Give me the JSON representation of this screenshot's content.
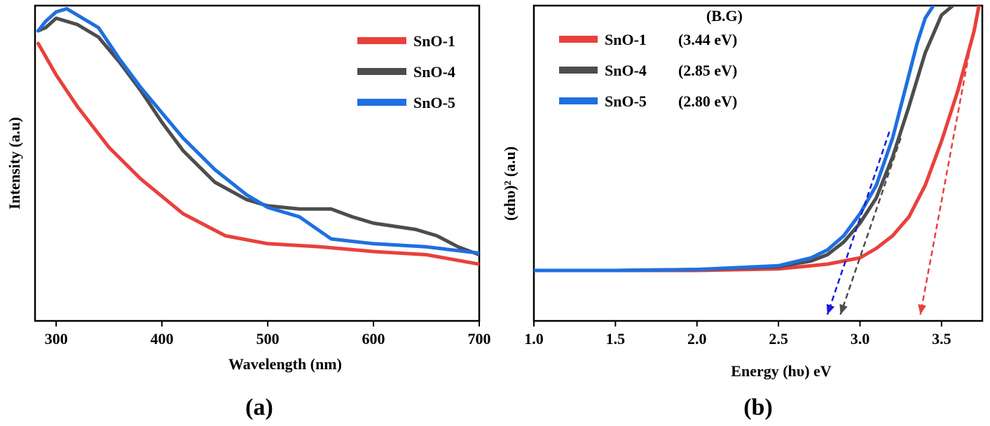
{
  "chart_data": [
    {
      "type": "line",
      "panel_label": "(a)",
      "xlabel": "Wavelength (nm)",
      "ylabel": "Intensity (a.u)",
      "xlim": [
        280,
        700
      ],
      "ylim": [
        0,
        1
      ],
      "x_ticks": [
        300,
        400,
        500,
        600,
        700
      ],
      "y_ticks_shown": false,
      "legend_position": "top-right",
      "series": [
        {
          "name": "SnO-1",
          "color": "#e8413c",
          "x": [
            283,
            300,
            320,
            350,
            380,
            420,
            460,
            500,
            550,
            600,
            650,
            700
          ],
          "y": [
            0.88,
            0.78,
            0.68,
            0.55,
            0.45,
            0.34,
            0.27,
            0.245,
            0.235,
            0.22,
            0.21,
            0.18
          ]
        },
        {
          "name": "SnO-4",
          "color": "#4d4d4d",
          "x": [
            283,
            290,
            300,
            320,
            340,
            360,
            380,
            400,
            420,
            450,
            480,
            500,
            530,
            560,
            580,
            600,
            620,
            640,
            660,
            680,
            700
          ],
          "y": [
            0.92,
            0.93,
            0.96,
            0.94,
            0.9,
            0.82,
            0.73,
            0.63,
            0.54,
            0.44,
            0.385,
            0.365,
            0.355,
            0.355,
            0.33,
            0.31,
            0.3,
            0.29,
            0.27,
            0.235,
            0.21
          ]
        },
        {
          "name": "SnO-5",
          "color": "#1f6fe0",
          "x": [
            283,
            290,
            300,
            310,
            320,
            340,
            360,
            380,
            400,
            420,
            450,
            480,
            500,
            530,
            560,
            600,
            650,
            700
          ],
          "y": [
            0.92,
            0.95,
            0.98,
            0.99,
            0.97,
            0.93,
            0.83,
            0.74,
            0.66,
            0.58,
            0.48,
            0.4,
            0.36,
            0.33,
            0.26,
            0.245,
            0.235,
            0.215
          ]
        }
      ]
    },
    {
      "type": "line",
      "panel_label": "(b)",
      "xlabel": "Energy (hυ) eV",
      "ylabel": "(αhυ)² (a.u)",
      "xlim": [
        1.0,
        3.75
      ],
      "ylim": [
        0,
        1
      ],
      "x_ticks": [
        1.0,
        1.5,
        2.0,
        2.5,
        3.0,
        3.5
      ],
      "y_ticks_shown": false,
      "legend_position": "top-left",
      "legend_header": "(B.G)",
      "series": [
        {
          "name": "SnO-1",
          "band_gap": "(3.44 eV)",
          "color": "#e8413c",
          "x": [
            1.0,
            1.5,
            2.0,
            2.5,
            2.8,
            3.0,
            3.1,
            3.2,
            3.3,
            3.4,
            3.5,
            3.6,
            3.7,
            3.73
          ],
          "y": [
            0.16,
            0.16,
            0.16,
            0.165,
            0.18,
            0.2,
            0.23,
            0.27,
            0.33,
            0.43,
            0.57,
            0.73,
            0.92,
            1.0
          ]
        },
        {
          "name": "SnO-4",
          "band_gap": "(2.85 eV)",
          "color": "#4d4d4d",
          "x": [
            1.0,
            1.5,
            2.0,
            2.5,
            2.7,
            2.8,
            2.9,
            3.0,
            3.1,
            3.2,
            3.3,
            3.4,
            3.5,
            3.57
          ],
          "y": [
            0.16,
            0.16,
            0.163,
            0.172,
            0.19,
            0.21,
            0.25,
            0.31,
            0.39,
            0.52,
            0.68,
            0.85,
            0.97,
            1.0
          ]
        },
        {
          "name": "SnO-5",
          "band_gap": "(2.80 eV)",
          "color": "#1f6fe0",
          "x": [
            1.0,
            1.5,
            2.0,
            2.5,
            2.7,
            2.8,
            2.9,
            3.0,
            3.1,
            3.2,
            3.3,
            3.35,
            3.4,
            3.45
          ],
          "y": [
            0.16,
            0.16,
            0.163,
            0.175,
            0.2,
            0.225,
            0.27,
            0.34,
            0.43,
            0.58,
            0.78,
            0.88,
            0.96,
            1.0
          ]
        }
      ],
      "tangents": [
        {
          "series": "SnO-5",
          "color": "#1a1adc",
          "from": [
            3.18,
            0.6
          ],
          "to": [
            2.8,
            0.02
          ]
        },
        {
          "series": "SnO-4",
          "color": "#4d4d4d",
          "from": [
            3.25,
            0.58
          ],
          "to": [
            2.88,
            0.02
          ]
        },
        {
          "series": "SnO-1",
          "color": "#e8413c",
          "from": [
            3.72,
            0.99
          ],
          "to": [
            3.37,
            0.02
          ]
        }
      ]
    }
  ]
}
